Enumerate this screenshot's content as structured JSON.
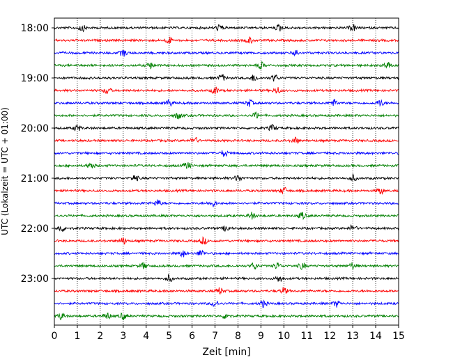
{
  "chart_data": {
    "type": "line",
    "title": "",
    "xlabel": "Zeit  [min]",
    "ylabel": "UTC (Lokalzeit = UTC + 01:00)",
    "xlim": [
      0,
      15
    ],
    "x_ticks": [
      "0",
      "1",
      "2",
      "3",
      "4",
      "5",
      "6",
      "7",
      "8",
      "9",
      "10",
      "11",
      "12",
      "13",
      "14",
      "15"
    ],
    "y_tick_labels": [
      "18:00",
      "19:00",
      "20:00",
      "21:00",
      "22:00",
      "23:00"
    ],
    "grid": "vertical-dotted",
    "trace_interval_minutes": 15,
    "trace_colors": [
      "#000000",
      "#ff0000",
      "#0000ff",
      "#008000"
    ],
    "traces": [
      {
        "start": "18:00",
        "color": "#000000",
        "events_min": [
          1.2,
          7.2,
          9.8,
          13.0
        ]
      },
      {
        "start": "18:15",
        "color": "#ff0000",
        "events_min": [
          5.0,
          8.5
        ]
      },
      {
        "start": "18:30",
        "color": "#0000ff",
        "events_min": [
          3.0,
          10.5
        ]
      },
      {
        "start": "18:45",
        "color": "#008000",
        "events_min": [
          4.2,
          9.0,
          14.5
        ]
      },
      {
        "start": "19:00",
        "color": "#000000",
        "events_min": [
          7.3,
          8.7,
          9.6
        ]
      },
      {
        "start": "19:15",
        "color": "#ff0000",
        "events_min": [
          2.3,
          7.0,
          9.7
        ]
      },
      {
        "start": "19:30",
        "color": "#0000ff",
        "events_min": [
          5.0,
          8.5,
          12.2,
          14.2
        ]
      },
      {
        "start": "19:45",
        "color": "#008000",
        "events_min": [
          5.4,
          8.8
        ]
      },
      {
        "start": "20:00",
        "color": "#000000",
        "events_min": [
          1.0,
          9.5
        ]
      },
      {
        "start": "20:15",
        "color": "#ff0000",
        "events_min": [
          6.1,
          10.5
        ]
      },
      {
        "start": "20:30",
        "color": "#0000ff",
        "events_min": [
          7.4
        ]
      },
      {
        "start": "20:45",
        "color": "#008000",
        "events_min": [
          1.6,
          5.8
        ]
      },
      {
        "start": "21:00",
        "color": "#000000",
        "events_min": [
          3.5,
          8.0,
          13.0
        ]
      },
      {
        "start": "21:15",
        "color": "#ff0000",
        "events_min": [
          10.0,
          14.2
        ]
      },
      {
        "start": "21:30",
        "color": "#0000ff",
        "events_min": [
          4.5,
          6.9
        ]
      },
      {
        "start": "21:45",
        "color": "#008000",
        "events_min": [
          8.6,
          10.8
        ]
      },
      {
        "start": "22:00",
        "color": "#000000",
        "events_min": [
          0.3,
          7.5,
          13.0
        ]
      },
      {
        "start": "22:15",
        "color": "#ff0000",
        "events_min": [
          3.0,
          6.5
        ]
      },
      {
        "start": "22:30",
        "color": "#0000ff",
        "events_min": [
          5.6,
          6.4
        ]
      },
      {
        "start": "22:45",
        "color": "#008000",
        "events_min": [
          3.9,
          8.7,
          9.7,
          10.8,
          13.0
        ]
      },
      {
        "start": "23:00",
        "color": "#000000",
        "events_min": [
          5.0,
          9.8
        ]
      },
      {
        "start": "23:15",
        "color": "#ff0000",
        "events_min": [
          7.2,
          10.0
        ]
      },
      {
        "start": "23:30",
        "color": "#0000ff",
        "events_min": [
          7.0,
          9.1,
          12.3
        ]
      },
      {
        "start": "23:45",
        "color": "#008000",
        "events_min": [
          0.3,
          2.3,
          3.0,
          7.5
        ]
      }
    ]
  }
}
